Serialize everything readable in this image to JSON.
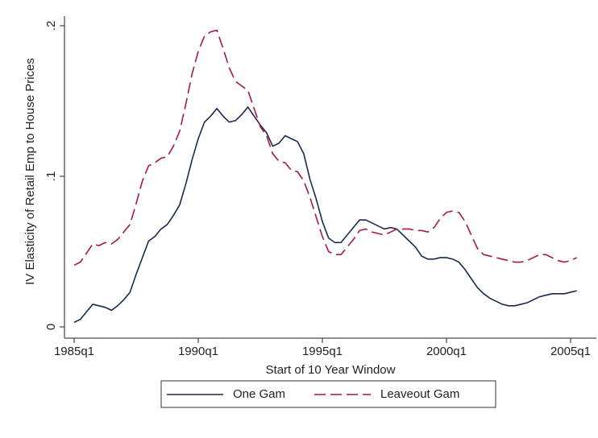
{
  "chart_data": {
    "type": "line",
    "x_label": "Start of 10 Year Window",
    "y_label": "IV Elasticity of Retail Emp to House Prices",
    "x": [
      1985,
      1985.25,
      1985.5,
      1985.75,
      1986,
      1986.25,
      1986.5,
      1986.75,
      1987,
      1987.25,
      1987.5,
      1987.75,
      1988,
      1988.25,
      1988.5,
      1988.75,
      1989,
      1989.25,
      1989.5,
      1989.75,
      1990,
      1990.25,
      1990.5,
      1990.75,
      1991,
      1991.25,
      1991.5,
      1991.75,
      1992,
      1992.25,
      1992.5,
      1992.75,
      1993,
      1993.25,
      1993.5,
      1993.75,
      1994,
      1994.25,
      1994.5,
      1994.75,
      1995,
      1995.25,
      1995.5,
      1995.75,
      1996,
      1996.25,
      1996.5,
      1996.75,
      1997,
      1997.25,
      1997.5,
      1997.75,
      1998,
      1998.25,
      1998.5,
      1998.75,
      1999,
      1999.25,
      1999.5,
      1999.75,
      2000,
      2000.25,
      2000.5,
      2000.75,
      2001,
      2001.25,
      2001.5,
      2001.75,
      2002,
      2002.25,
      2002.5,
      2002.75,
      2003,
      2003.25,
      2003.5,
      2003.75,
      2004,
      2004.25,
      2004.5,
      2004.75,
      2005,
      2005.25
    ],
    "series": [
      {
        "name": "One Gam",
        "color": "#1a2a4f",
        "dashed": false,
        "values": [
          0.003,
          0.005,
          0.01,
          0.015,
          0.014,
          0.013,
          0.011,
          0.014,
          0.018,
          0.023,
          0.035,
          0.046,
          0.057,
          0.06,
          0.065,
          0.068,
          0.074,
          0.081,
          0.095,
          0.111,
          0.125,
          0.136,
          0.14,
          0.145,
          0.14,
          0.136,
          0.137,
          0.141,
          0.146,
          0.14,
          0.134,
          0.129,
          0.12,
          0.122,
          0.127,
          0.125,
          0.123,
          0.115,
          0.098,
          0.085,
          0.07,
          0.059,
          0.056,
          0.056,
          0.061,
          0.066,
          0.071,
          0.071,
          0.069,
          0.067,
          0.065,
          0.066,
          0.065,
          0.061,
          0.057,
          0.053,
          0.047,
          0.045,
          0.045,
          0.046,
          0.046,
          0.045,
          0.043,
          0.038,
          0.032,
          0.026,
          0.022,
          0.019,
          0.017,
          0.015,
          0.014,
          0.014,
          0.015,
          0.016,
          0.018,
          0.02,
          0.021,
          0.022,
          0.022,
          0.022,
          0.023,
          0.024
        ]
      },
      {
        "name": "Leaveout Gam",
        "color": "#a8174a",
        "dashed": true,
        "values": [
          0.041,
          0.043,
          0.049,
          0.055,
          0.054,
          0.056,
          0.055,
          0.058,
          0.063,
          0.068,
          0.082,
          0.097,
          0.107,
          0.109,
          0.112,
          0.113,
          0.12,
          0.13,
          0.148,
          0.168,
          0.183,
          0.193,
          0.196,
          0.197,
          0.185,
          0.172,
          0.163,
          0.16,
          0.157,
          0.145,
          0.133,
          0.127,
          0.115,
          0.11,
          0.109,
          0.104,
          0.103,
          0.097,
          0.086,
          0.073,
          0.06,
          0.05,
          0.048,
          0.048,
          0.053,
          0.058,
          0.064,
          0.065,
          0.063,
          0.062,
          0.061,
          0.063,
          0.065,
          0.065,
          0.065,
          0.064,
          0.064,
          0.063,
          0.066,
          0.072,
          0.076,
          0.077,
          0.076,
          0.07,
          0.061,
          0.052,
          0.048,
          0.047,
          0.046,
          0.045,
          0.044,
          0.043,
          0.043,
          0.044,
          0.046,
          0.048,
          0.048,
          0.046,
          0.044,
          0.043,
          0.044,
          0.046
        ]
      }
    ],
    "xlim": [
      1984.61,
      2006.04
    ],
    "xticks": [
      {
        "value": 1985,
        "label": "1985q1"
      },
      {
        "value": 1990,
        "label": "1990q1"
      },
      {
        "value": 1995,
        "label": "1995q1"
      },
      {
        "value": 2000,
        "label": "2000q1"
      },
      {
        "value": 2005,
        "label": "2005q1"
      }
    ],
    "ylim": [
      -0.0075,
      0.2064
    ],
    "yticks": [
      0,
      {
        "value": 0.1,
        "label": ".1"
      },
      {
        "value": 0.2,
        "label": ".2"
      }
    ],
    "grid": false,
    "legend": "bottom"
  }
}
